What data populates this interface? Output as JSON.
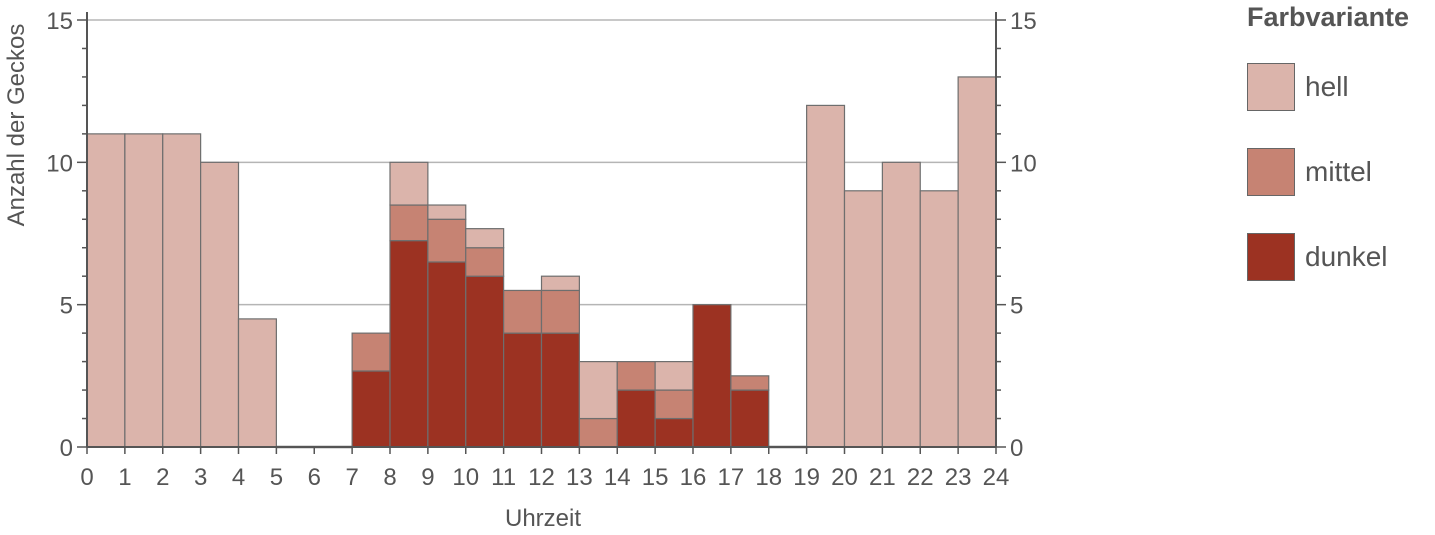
{
  "chart_data": {
    "type": "bar",
    "stacked": true,
    "xlabel": "Uhrzeit",
    "ylabel": "Anzahl der Geckos",
    "xlim": [
      0,
      24
    ],
    "ylim": [
      0,
      15
    ],
    "x_ticks": [
      "0",
      "1",
      "2",
      "3",
      "4",
      "5",
      "6",
      "7",
      "8",
      "9",
      "10",
      "11",
      "12",
      "13",
      "14",
      "15",
      "16",
      "17",
      "18",
      "19",
      "20",
      "21",
      "22",
      "23",
      "24"
    ],
    "y_ticks": [
      "0",
      "5",
      "10",
      "15"
    ],
    "grid": "horizontal",
    "bins": [
      [
        0,
        1
      ],
      [
        1,
        2
      ],
      [
        2,
        3
      ],
      [
        3,
        4
      ],
      [
        4,
        5
      ],
      [
        5,
        6
      ],
      [
        6,
        7
      ],
      [
        7,
        8
      ],
      [
        8,
        9
      ],
      [
        9,
        10
      ],
      [
        10,
        11
      ],
      [
        11,
        12
      ],
      [
        12,
        13
      ],
      [
        13,
        14
      ],
      [
        14,
        15
      ],
      [
        15,
        16
      ],
      [
        16,
        17
      ],
      [
        17,
        18
      ],
      [
        18,
        19
      ],
      [
        19,
        20
      ],
      [
        20,
        21
      ],
      [
        21,
        22
      ],
      [
        22,
        23
      ],
      [
        23,
        24
      ]
    ],
    "series": [
      {
        "name": "dunkel",
        "color": "#9c3222",
        "values": [
          0,
          0,
          0,
          0,
          0,
          0,
          0,
          2.67,
          7.25,
          6.5,
          6,
          4,
          4,
          0,
          2,
          1,
          5,
          2,
          0,
          0,
          0,
          0,
          0,
          0
        ]
      },
      {
        "name": "mittel",
        "color": "#c68373",
        "values": [
          0,
          0,
          0,
          0,
          0,
          0,
          0,
          1.33,
          1.25,
          1.5,
          1,
          1.5,
          1.5,
          1,
          1,
          1,
          0,
          0.5,
          0,
          0,
          0,
          0,
          0,
          0
        ]
      },
      {
        "name": "hell",
        "color": "#dbb4ab",
        "values": [
          11,
          11,
          11,
          10,
          4.5,
          0,
          0,
          0,
          1.5,
          0.5,
          0.67,
          0,
          0.5,
          2,
          0,
          1,
          0,
          0,
          0,
          12,
          9,
          10,
          9,
          13
        ]
      }
    ]
  },
  "legend": {
    "title": "Farbvariante",
    "items": [
      {
        "label": "hell",
        "color": "#dbb4ab"
      },
      {
        "label": "mittel",
        "color": "#c68373"
      },
      {
        "label": "dunkel",
        "color": "#9c3222"
      }
    ]
  }
}
